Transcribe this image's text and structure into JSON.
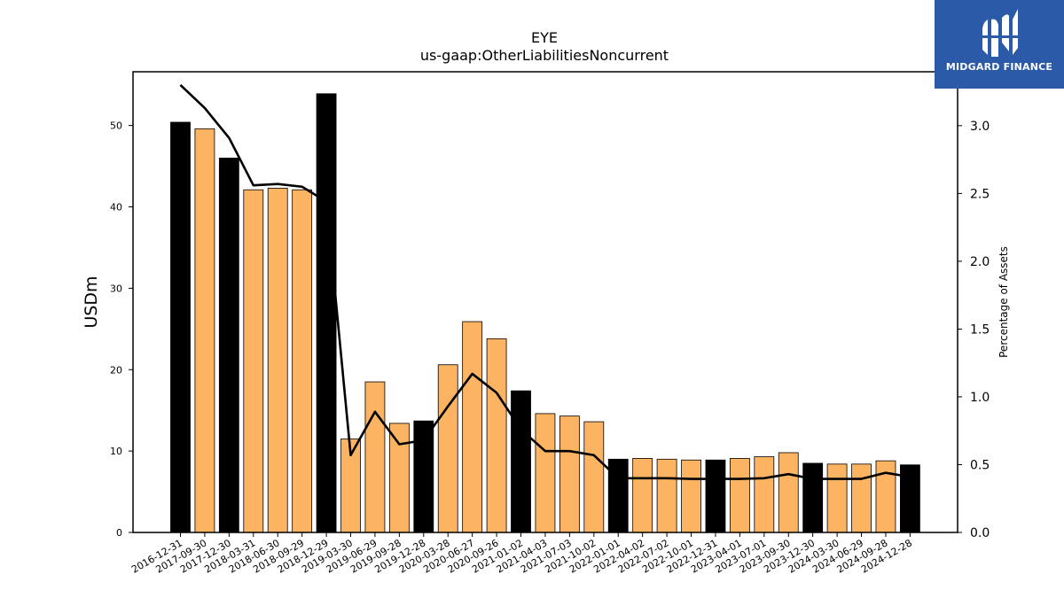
{
  "brand": {
    "name": "MIDGARD FINANCE",
    "bg_color": "#2a5aa8",
    "icon": "midgard-logo-icon"
  },
  "chart_data": {
    "type": "bar",
    "title": "EYE",
    "subtitle": "us-gaap:OtherLiabilitiesNoncurrent",
    "ylabel": "USDm",
    "y2label": "Percentage of Assets",
    "ylim": [
      0,
      56.6
    ],
    "y2lim": [
      0,
      3.3977
    ],
    "yticks": [
      0,
      10,
      20,
      30,
      40,
      50
    ],
    "y2ticks": [
      "0.0",
      "0.5",
      "1.0",
      "1.5",
      "2.0",
      "2.5",
      "3.0"
    ],
    "colors": {
      "annual": "#000000",
      "quarterly": "#fdb462",
      "line": "#000000"
    },
    "categories": [
      "2016-12-31",
      "2017-09-30",
      "2017-12-30",
      "2018-03-31",
      "2018-06-30",
      "2018-09-29",
      "2018-12-29",
      "2019-03-30",
      "2019-06-29",
      "2019-09-28",
      "2019-12-28",
      "2020-03-28",
      "2020-06-27",
      "2020-09-26",
      "2021-01-02",
      "2021-04-03",
      "2021-07-03",
      "2021-10-02",
      "2022-01-01",
      "2022-04-02",
      "2022-07-02",
      "2022-10-01",
      "2022-12-31",
      "2023-04-01",
      "2023-07-01",
      "2023-09-30",
      "2023-12-30",
      "2024-03-30",
      "2024-06-29",
      "2024-09-28",
      "2024-12-28"
    ],
    "values": [
      50.4,
      49.6,
      46.0,
      42.1,
      42.3,
      42.1,
      53.9,
      11.5,
      18.5,
      13.4,
      13.7,
      20.6,
      25.9,
      23.8,
      17.4,
      14.6,
      14.3,
      13.6,
      9.0,
      9.1,
      9.0,
      8.9,
      8.9,
      9.1,
      9.3,
      9.8,
      8.5,
      8.4,
      8.4,
      8.8,
      8.3
    ],
    "annual_flags": [
      true,
      false,
      true,
      false,
      false,
      false,
      true,
      false,
      false,
      false,
      true,
      false,
      false,
      false,
      true,
      false,
      false,
      false,
      true,
      false,
      false,
      false,
      true,
      false,
      false,
      false,
      true,
      false,
      false,
      false,
      true
    ],
    "series": [
      {
        "axis": "right",
        "type": "line",
        "values": [
          3.3,
          3.13,
          2.91,
          2.56,
          2.57,
          2.55,
          2.44,
          0.57,
          0.89,
          0.65,
          0.68,
          0.93,
          1.17,
          1.03,
          0.76,
          0.6,
          0.6,
          0.57,
          0.4,
          0.4,
          0.4,
          0.395,
          0.395,
          0.395,
          0.4,
          0.43,
          0.395,
          0.395,
          0.395,
          0.44,
          0.41
        ]
      }
    ]
  }
}
